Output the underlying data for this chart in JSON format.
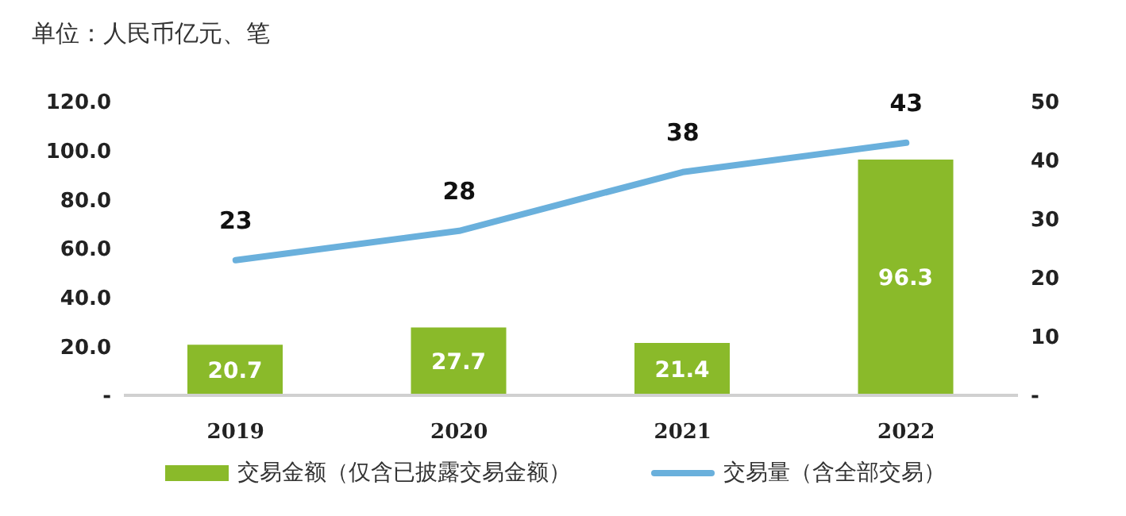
{
  "chart_data": {
    "type": "bar",
    "title": "单位：人民币亿元、笔",
    "categories": [
      "2019",
      "2020",
      "2021",
      "2022"
    ],
    "series": [
      {
        "name": "交易金额（仅含已披露交易金额）",
        "color": "#8aba2a",
        "values": [
          20.7,
          27.7,
          21.4,
          96.3
        ]
      },
      {
        "name": "交易量（含全部交易）",
        "type": "line",
        "axis": "y2",
        "color": "#6ab0dc",
        "values": [
          23,
          28,
          38,
          43
        ]
      }
    ],
    "ylim": [
      0,
      120
    ],
    "yticks": [
      {
        "value": 0,
        "label": "-"
      },
      {
        "value": 20,
        "label": "20.0"
      },
      {
        "value": 40,
        "label": "40.0"
      },
      {
        "value": 60,
        "label": "60.0"
      },
      {
        "value": 80,
        "label": "80.0"
      },
      {
        "value": 100,
        "label": "100.0"
      },
      {
        "value": 120,
        "label": "120.0"
      }
    ],
    "y2lim": [
      0,
      50
    ],
    "y2ticks": [
      {
        "value": 0,
        "label": "-"
      },
      10,
      20,
      30,
      40,
      50
    ],
    "data_labels": true,
    "grid": false,
    "legend": "bottom"
  }
}
